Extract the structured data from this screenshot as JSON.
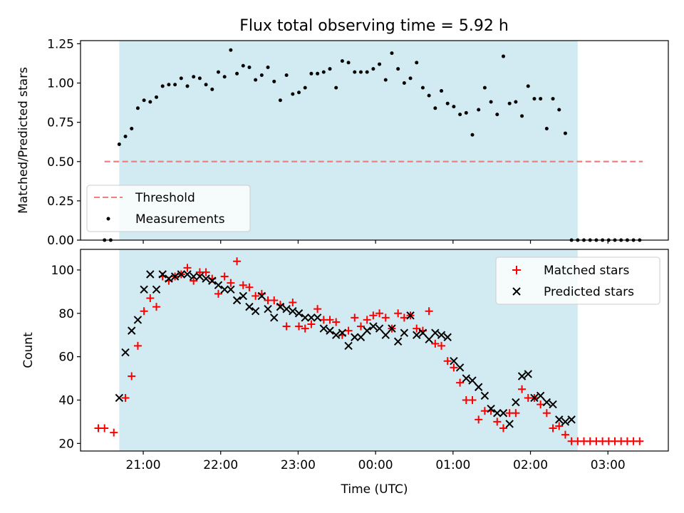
{
  "title": "Flux total observing time = 5.92 h",
  "colors": {
    "shade": "#add8e6",
    "threshold": "#f08080",
    "measurements": "#000000",
    "matched": "#ff0000",
    "predicted": "#000000"
  },
  "chart_data": [
    {
      "type": "scatter",
      "panel": "top",
      "ylabel": "Matched/Predicted stars",
      "ylim": [
        0,
        1.27
      ],
      "yticks": [
        "0.00",
        "0.25",
        "0.50",
        "0.75",
        "1.00",
        "1.25"
      ],
      "xlim": [
        20.19,
        27.78
      ],
      "xticks": [
        {
          "x": 21,
          "label": "21:00"
        },
        {
          "x": 22,
          "label": "22:00"
        },
        {
          "x": 23,
          "label": "23:00"
        },
        {
          "x": 24,
          "label": "00:00"
        },
        {
          "x": 25,
          "label": "01:00"
        },
        {
          "x": 26,
          "label": "02:00"
        },
        {
          "x": 27,
          "label": "03:00"
        }
      ],
      "shaded_span": [
        20.69,
        26.61
      ],
      "legend": {
        "placement": "lower-left",
        "entries": [
          "Threshold",
          "Measurements"
        ]
      },
      "series": [
        {
          "name": "Threshold",
          "kind": "dashed-line",
          "x": [
            20.5,
            27.45
          ],
          "y": [
            0.5,
            0.5
          ]
        },
        {
          "name": "Measurements",
          "kind": "dot",
          "points": [
            [
              20.5,
              0.0
            ],
            [
              20.58,
              0.0
            ],
            [
              20.69,
              0.61
            ],
            [
              20.77,
              0.66
            ],
            [
              20.85,
              0.71
            ],
            [
              20.93,
              0.84
            ],
            [
              21.01,
              0.89
            ],
            [
              21.09,
              0.88
            ],
            [
              21.17,
              0.91
            ],
            [
              21.25,
              0.98
            ],
            [
              21.33,
              0.99
            ],
            [
              21.41,
              0.99
            ],
            [
              21.49,
              1.03
            ],
            [
              21.57,
              0.98
            ],
            [
              21.65,
              1.04
            ],
            [
              21.73,
              1.03
            ],
            [
              21.81,
              0.99
            ],
            [
              21.89,
              0.96
            ],
            [
              21.97,
              1.07
            ],
            [
              22.05,
              1.04
            ],
            [
              22.13,
              1.21
            ],
            [
              22.21,
              1.06
            ],
            [
              22.29,
              1.11
            ],
            [
              22.37,
              1.1
            ],
            [
              22.45,
              1.02
            ],
            [
              22.53,
              1.05
            ],
            [
              22.61,
              1.1
            ],
            [
              22.69,
              1.01
            ],
            [
              22.77,
              0.89
            ],
            [
              22.85,
              1.05
            ],
            [
              22.93,
              0.93
            ],
            [
              23.01,
              0.94
            ],
            [
              23.09,
              0.97
            ],
            [
              23.17,
              1.06
            ],
            [
              23.25,
              1.06
            ],
            [
              23.33,
              1.07
            ],
            [
              23.41,
              1.09
            ],
            [
              23.49,
              0.97
            ],
            [
              23.57,
              1.14
            ],
            [
              23.65,
              1.13
            ],
            [
              23.73,
              1.07
            ],
            [
              23.81,
              1.07
            ],
            [
              23.89,
              1.07
            ],
            [
              23.97,
              1.09
            ],
            [
              24.05,
              1.12
            ],
            [
              24.13,
              1.02
            ],
            [
              24.21,
              1.19
            ],
            [
              24.29,
              1.09
            ],
            [
              24.37,
              1.0
            ],
            [
              24.45,
              1.03
            ],
            [
              24.53,
              1.13
            ],
            [
              24.61,
              0.97
            ],
            [
              24.69,
              0.92
            ],
            [
              24.77,
              0.84
            ],
            [
              24.85,
              0.95
            ],
            [
              24.93,
              0.87
            ],
            [
              25.01,
              0.85
            ],
            [
              25.09,
              0.8
            ],
            [
              25.17,
              0.81
            ],
            [
              25.25,
              0.67
            ],
            [
              25.33,
              0.83
            ],
            [
              25.41,
              0.97
            ],
            [
              25.49,
              0.88
            ],
            [
              25.57,
              0.8
            ],
            [
              25.65,
              1.17
            ],
            [
              25.73,
              0.87
            ],
            [
              25.81,
              0.88
            ],
            [
              25.89,
              0.79
            ],
            [
              25.97,
              0.98
            ],
            [
              26.05,
              0.9
            ],
            [
              26.13,
              0.9
            ],
            [
              26.21,
              0.71
            ],
            [
              26.29,
              0.9
            ],
            [
              26.37,
              0.83
            ],
            [
              26.45,
              0.68
            ],
            [
              26.53,
              0.0
            ],
            [
              26.61,
              0.0
            ],
            [
              26.69,
              0.0
            ],
            [
              26.77,
              0.0
            ],
            [
              26.85,
              0.0
            ],
            [
              26.93,
              0.0
            ],
            [
              27.01,
              0.0
            ],
            [
              27.09,
              0.0
            ],
            [
              27.17,
              0.0
            ],
            [
              27.25,
              0.0
            ],
            [
              27.33,
              0.0
            ],
            [
              27.41,
              0.0
            ]
          ]
        }
      ]
    },
    {
      "type": "scatter",
      "panel": "bottom",
      "xlabel": "Time (UTC)",
      "ylabel": "Count",
      "ylim": [
        16.5,
        109.5
      ],
      "yticks": [
        "20",
        "40",
        "60",
        "80",
        "100"
      ],
      "xlim": [
        20.19,
        27.78
      ],
      "xticks": [
        {
          "x": 21,
          "label": "21:00"
        },
        {
          "x": 22,
          "label": "22:00"
        },
        {
          "x": 23,
          "label": "23:00"
        },
        {
          "x": 24,
          "label": "00:00"
        },
        {
          "x": 25,
          "label": "01:00"
        },
        {
          "x": 26,
          "label": "02:00"
        },
        {
          "x": 27,
          "label": "03:00"
        }
      ],
      "shaded_span": [
        20.69,
        26.61
      ],
      "legend": {
        "placement": "upper-right",
        "entries": [
          "Matched stars",
          "Predicted stars"
        ]
      },
      "series": [
        {
          "name": "Matched stars",
          "kind": "plus",
          "points": [
            [
              20.42,
              27
            ],
            [
              20.5,
              27
            ],
            [
              20.62,
              25
            ],
            [
              20.77,
              41
            ],
            [
              20.85,
              51
            ],
            [
              20.93,
              65
            ],
            [
              21.01,
              81
            ],
            [
              21.09,
              87
            ],
            [
              21.17,
              83
            ],
            [
              21.25,
              97
            ],
            [
              21.33,
              95
            ],
            [
              21.41,
              97
            ],
            [
              21.49,
              98
            ],
            [
              21.57,
              101
            ],
            [
              21.65,
              95
            ],
            [
              21.73,
              99
            ],
            [
              21.81,
              99
            ],
            [
              21.89,
              96
            ],
            [
              21.97,
              89
            ],
            [
              22.05,
              97
            ],
            [
              22.13,
              94
            ],
            [
              22.21,
              104
            ],
            [
              22.29,
              93
            ],
            [
              22.37,
              92
            ],
            [
              22.45,
              88
            ],
            [
              22.53,
              89
            ],
            [
              22.61,
              86
            ],
            [
              22.69,
              86
            ],
            [
              22.77,
              84
            ],
            [
              22.85,
              74
            ],
            [
              22.93,
              85
            ],
            [
              23.01,
              74
            ],
            [
              23.09,
              73
            ],
            [
              23.17,
              75
            ],
            [
              23.25,
              82
            ],
            [
              23.33,
              77
            ],
            [
              23.41,
              77
            ],
            [
              23.49,
              76
            ],
            [
              23.57,
              70
            ],
            [
              23.65,
              72
            ],
            [
              23.73,
              78
            ],
            [
              23.81,
              74
            ],
            [
              23.89,
              77
            ],
            [
              23.97,
              79
            ],
            [
              24.05,
              80
            ],
            [
              24.13,
              78
            ],
            [
              24.21,
              73
            ],
            [
              24.29,
              80
            ],
            [
              24.37,
              78
            ],
            [
              24.45,
              79
            ],
            [
              24.53,
              73
            ],
            [
              24.61,
              72
            ],
            [
              24.69,
              81
            ],
            [
              24.77,
              66
            ],
            [
              24.85,
              65
            ],
            [
              24.93,
              58
            ],
            [
              25.01,
              55
            ],
            [
              25.09,
              48
            ],
            [
              25.17,
              40
            ],
            [
              25.25,
              40
            ],
            [
              25.33,
              31
            ],
            [
              25.41,
              35
            ],
            [
              25.49,
              35
            ],
            [
              25.57,
              30
            ],
            [
              25.65,
              27
            ],
            [
              25.73,
              34
            ],
            [
              25.81,
              34
            ],
            [
              25.89,
              45
            ],
            [
              25.97,
              41
            ],
            [
              26.05,
              41
            ],
            [
              26.13,
              38
            ],
            [
              26.21,
              34
            ],
            [
              26.29,
              27
            ],
            [
              26.37,
              28
            ],
            [
              26.45,
              24
            ],
            [
              26.53,
              21
            ],
            [
              26.61,
              21
            ],
            [
              26.69,
              21
            ],
            [
              26.77,
              21
            ],
            [
              26.85,
              21
            ],
            [
              26.93,
              21
            ],
            [
              27.01,
              21
            ],
            [
              27.09,
              21
            ],
            [
              27.17,
              21
            ],
            [
              27.25,
              21
            ],
            [
              27.33,
              21
            ],
            [
              27.41,
              21
            ]
          ]
        },
        {
          "name": "Predicted stars",
          "kind": "cross",
          "points": [
            [
              20.69,
              41
            ],
            [
              20.77,
              62
            ],
            [
              20.85,
              72
            ],
            [
              20.93,
              77
            ],
            [
              21.01,
              91
            ],
            [
              21.09,
              98
            ],
            [
              21.17,
              91
            ],
            [
              21.25,
              98
            ],
            [
              21.33,
              96
            ],
            [
              21.41,
              97
            ],
            [
              21.49,
              98
            ],
            [
              21.57,
              98
            ],
            [
              21.65,
              97
            ],
            [
              21.73,
              97
            ],
            [
              21.81,
              96
            ],
            [
              21.89,
              95
            ],
            [
              21.97,
              93
            ],
            [
              22.05,
              91
            ],
            [
              22.13,
              91
            ],
            [
              22.21,
              86
            ],
            [
              22.29,
              88
            ],
            [
              22.37,
              83
            ],
            [
              22.45,
              81
            ],
            [
              22.53,
              88
            ],
            [
              22.61,
              82
            ],
            [
              22.69,
              78
            ],
            [
              22.77,
              83
            ],
            [
              22.85,
              82
            ],
            [
              22.93,
              81
            ],
            [
              23.01,
              80
            ],
            [
              23.09,
              78
            ],
            [
              23.17,
              78
            ],
            [
              23.25,
              78
            ],
            [
              23.33,
              73
            ],
            [
              23.41,
              72
            ],
            [
              23.49,
              70
            ],
            [
              23.57,
              71
            ],
            [
              23.65,
              65
            ],
            [
              23.73,
              69
            ],
            [
              23.81,
              69
            ],
            [
              23.89,
              72
            ],
            [
              23.97,
              74
            ],
            [
              24.05,
              73
            ],
            [
              24.13,
              70
            ],
            [
              24.21,
              73
            ],
            [
              24.29,
              67
            ],
            [
              24.37,
              71
            ],
            [
              24.45,
              79
            ],
            [
              24.53,
              70
            ],
            [
              24.61,
              71
            ],
            [
              24.69,
              68
            ],
            [
              24.77,
              71
            ],
            [
              24.85,
              70
            ],
            [
              24.93,
              69
            ],
            [
              25.01,
              58
            ],
            [
              25.09,
              55
            ],
            [
              25.17,
              50
            ],
            [
              25.25,
              49
            ],
            [
              25.33,
              46
            ],
            [
              25.41,
              42
            ],
            [
              25.49,
              36
            ],
            [
              25.57,
              34
            ],
            [
              25.65,
              34
            ],
            [
              25.73,
              29
            ],
            [
              25.81,
              39
            ],
            [
              25.89,
              51
            ],
            [
              25.97,
              52
            ],
            [
              26.05,
              41
            ],
            [
              26.13,
              42
            ],
            [
              26.21,
              39
            ],
            [
              26.29,
              38
            ],
            [
              26.37,
              31
            ],
            [
              26.45,
              30
            ],
            [
              26.53,
              31
            ]
          ]
        }
      ]
    }
  ]
}
